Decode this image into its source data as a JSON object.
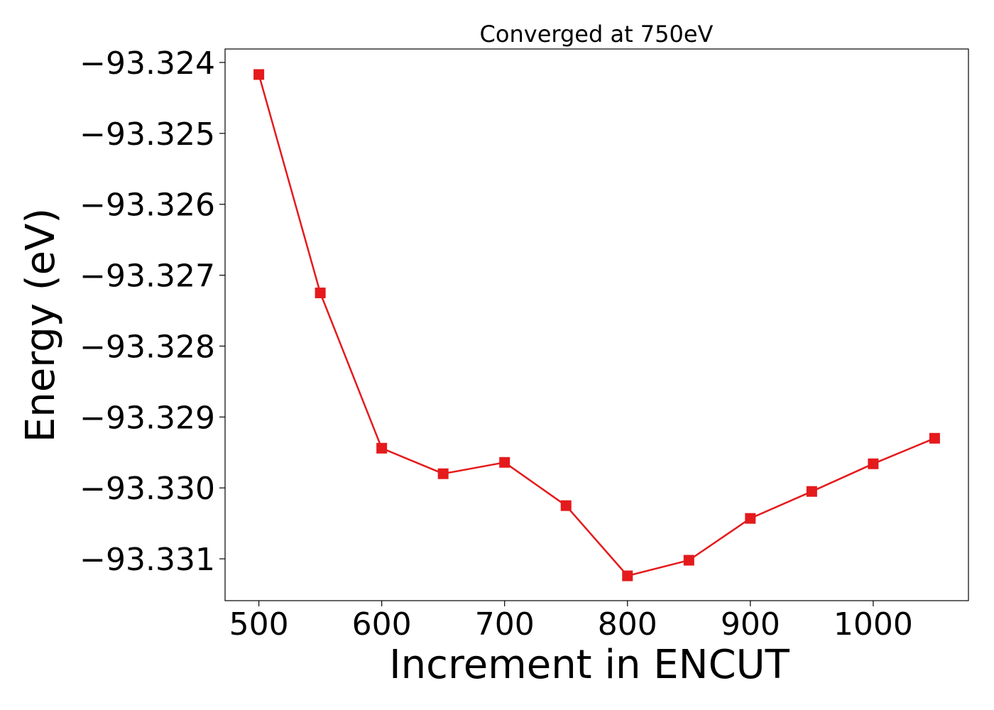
{
  "chart_data": {
    "type": "line",
    "title": "Converged at 750eV",
    "xlabel": "Increment in ENCUT",
    "ylabel": "Energy (eV)",
    "xlim": [
      472.5,
      1077.5
    ],
    "ylim": [
      -93.33159,
      -93.32381
    ],
    "xticks": [
      500,
      600,
      700,
      800,
      900,
      1000
    ],
    "xtick_labels": [
      "500",
      "600",
      "700",
      "800",
      "900",
      "1000"
    ],
    "yticks": [
      -93.331,
      -93.33,
      -93.329,
      -93.328,
      -93.327,
      -93.326,
      -93.325,
      -93.324
    ],
    "ytick_labels": [
      "−93.331",
      "−93.330",
      "−93.329",
      "−93.328",
      "−93.327",
      "−93.326",
      "−93.325",
      "−93.324"
    ],
    "grid": false,
    "series": [
      {
        "color": "#e41a1c",
        "marker": "square",
        "x": [
          500,
          550,
          600,
          650,
          700,
          750,
          800,
          850,
          900,
          950,
          1000,
          1050
        ],
        "y": [
          -93.32417,
          -93.32725,
          -93.32944,
          -93.3298,
          -93.32964,
          -93.33025,
          -93.33124,
          -93.33102,
          -93.33043,
          -93.33005,
          -93.32966,
          -93.3293
        ]
      }
    ]
  }
}
